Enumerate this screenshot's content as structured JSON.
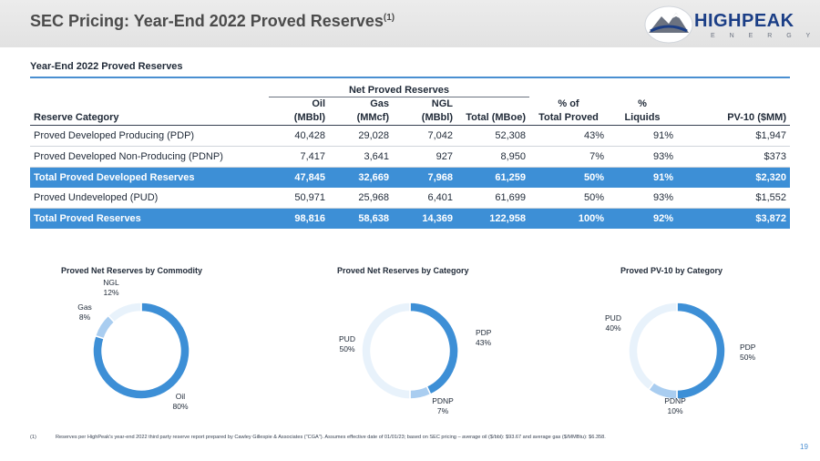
{
  "header": {
    "title": "SEC Pricing: Year-End 2022 Proved Reserves",
    "title_sup": "(1)",
    "logo_text": "HIGHPEAK",
    "logo_sub": "E N E R G Y"
  },
  "section_title": "Year-End 2022 Proved Reserves",
  "table": {
    "group_header": "Net Proved Reserves",
    "headers_top": [
      "",
      "Oil",
      "Gas",
      "NGL",
      "",
      "% of",
      "%",
      ""
    ],
    "headers_bottom": [
      "Reserve Category",
      "(MBbl)",
      "(MMcf)",
      "(MBbl)",
      "Total (MBoe)",
      "Total Proved",
      "Liquids",
      "PV-10 ($MM)"
    ],
    "rows": [
      {
        "total": false,
        "cells": [
          "Proved Developed Producing (PDP)",
          "40,428",
          "29,028",
          "7,042",
          "52,308",
          "43%",
          "91%",
          "$1,947"
        ]
      },
      {
        "total": false,
        "cells": [
          "Proved Developed Non-Producing (PDNP)",
          "7,417",
          "3,641",
          "927",
          "8,950",
          "7%",
          "93%",
          "$373"
        ]
      },
      {
        "total": true,
        "cells": [
          "Total Proved Developed Reserves",
          "47,845",
          "32,669",
          "7,968",
          "61,259",
          "50%",
          "91%",
          "$2,320"
        ]
      },
      {
        "total": false,
        "cells": [
          "Proved Undeveloped (PUD)",
          "50,971",
          "25,968",
          "6,401",
          "61,699",
          "50%",
          "93%",
          "$1,552"
        ]
      },
      {
        "total": true,
        "cells": [
          "Total Proved Reserves",
          "98,816",
          "58,638",
          "14,369",
          "122,958",
          "100%",
          "92%",
          "$3,872"
        ]
      }
    ]
  },
  "chart_data": [
    {
      "type": "pie",
      "title": "Proved Net Reserves by Commodity",
      "slices": [
        {
          "label": "Oil",
          "value": 80,
          "display": "80%",
          "color": "#3d8fd6"
        },
        {
          "label": "Gas",
          "value": 8,
          "display": "8%",
          "color": "#a9cdf0"
        },
        {
          "label": "NGL",
          "value": 12,
          "display": "12%",
          "color": "#e8f2fb"
        }
      ]
    },
    {
      "type": "pie",
      "title": "Proved Net Reserves by Category",
      "slices": [
        {
          "label": "PDP",
          "value": 43,
          "display": "43%",
          "color": "#3d8fd6"
        },
        {
          "label": "PDNP",
          "value": 7,
          "display": "7%",
          "color": "#a9cdf0"
        },
        {
          "label": "PUD",
          "value": 50,
          "display": "50%",
          "color": "#e8f2fb"
        }
      ]
    },
    {
      "type": "pie",
      "title": "Proved PV-10 by Category",
      "slices": [
        {
          "label": "PDP",
          "value": 50,
          "display": "50%",
          "color": "#3d8fd6"
        },
        {
          "label": "PDNP",
          "value": 10,
          "display": "10%",
          "color": "#a9cdf0"
        },
        {
          "label": "PUD",
          "value": 40,
          "display": "40%",
          "color": "#e8f2fb"
        }
      ]
    }
  ],
  "footnote": {
    "number": "(1)",
    "text": "Reserves per HighPeak's year-end 2022 third party reserve report prepared by Cawley Gillespie & Associates (\"CGA\"). Assumes effective date of 01/01/23; based on SEC pricing – average oil ($/bbl): $93.67 and average gas ($/MMBtu): $6.358."
  },
  "page_number": "19",
  "colors": {
    "accent": "#3d8fd6",
    "logo": "#1b3e86"
  }
}
